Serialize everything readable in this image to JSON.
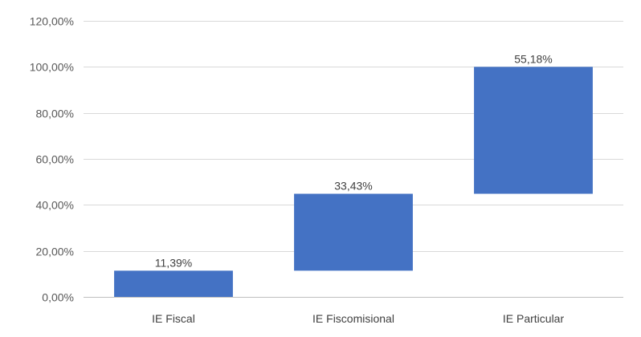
{
  "chart_data": {
    "type": "bar",
    "subtype": "waterfall",
    "categories": [
      "IE Fiscal",
      "IE Fiscomisional",
      "IE Particular"
    ],
    "values": [
      11.39,
      33.43,
      55.18
    ],
    "value_labels": [
      "11,39%",
      "33,43%",
      "55,18%"
    ],
    "ylim": [
      0,
      120
    ],
    "yticks": [
      0,
      20,
      40,
      60,
      80,
      100,
      120
    ],
    "ytick_labels": [
      "0,00%",
      "20,00%",
      "40,00%",
      "60,00%",
      "80,00%",
      "100,00%",
      "120,00%"
    ],
    "grid": true,
    "legend": "none",
    "colors": {
      "bar": "#4472C4",
      "grid": "#D9D9D9",
      "axis": "#BFBFBF"
    }
  }
}
